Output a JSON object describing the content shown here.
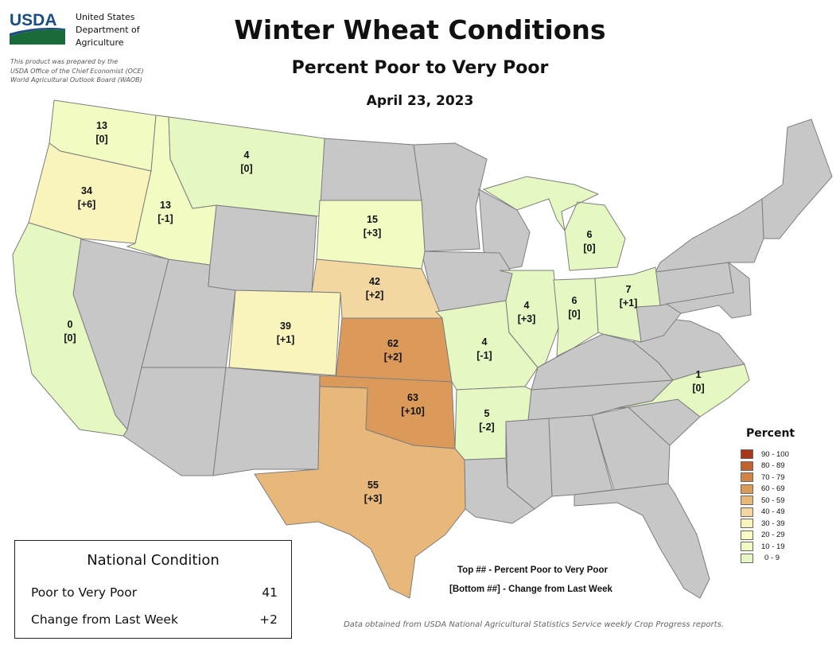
{
  "agency": {
    "name_lines": [
      "United States",
      "Department of",
      "Agriculture"
    ],
    "logo_text": "USDA"
  },
  "prepared_by": [
    "This product was prepared by the",
    "USDA Office of the Chief Economist (OCE)",
    "World Agricultural Outlook Board (WAOB)"
  ],
  "title": "Winter Wheat Conditions",
  "subtitle": "Percent Poor to Very Poor",
  "date": "April 23, 2023",
  "states": [
    {
      "id": "WA",
      "value": "13",
      "change": "[0]"
    },
    {
      "id": "OR",
      "value": "34",
      "change": "[+6]"
    },
    {
      "id": "ID",
      "value": "13",
      "change": "[-1]"
    },
    {
      "id": "MT",
      "value": "4",
      "change": "[0]"
    },
    {
      "id": "CA",
      "value": "0",
      "change": "[0]"
    },
    {
      "id": "CO",
      "value": "39",
      "change": "[+1]"
    },
    {
      "id": "SD",
      "value": "15",
      "change": "[+3]"
    },
    {
      "id": "NE",
      "value": "42",
      "change": "[+2]"
    },
    {
      "id": "KS",
      "value": "62",
      "change": "[+2]"
    },
    {
      "id": "OK",
      "value": "63",
      "change": "[+10]"
    },
    {
      "id": "TX",
      "value": "55",
      "change": "[+3]"
    },
    {
      "id": "MO",
      "value": "4",
      "change": "[-1]"
    },
    {
      "id": "AR",
      "value": "5",
      "change": "[-2]"
    },
    {
      "id": "IL",
      "value": "4",
      "change": "[+3]"
    },
    {
      "id": "IN",
      "value": "6",
      "change": "[0]"
    },
    {
      "id": "OH",
      "value": "7",
      "change": "[+1]"
    },
    {
      "id": "MI",
      "value": "6",
      "change": "[0]"
    },
    {
      "id": "NC",
      "value": "1",
      "change": "[0]"
    }
  ],
  "legend": {
    "title": "Percent",
    "items": [
      {
        "label": "90 - 100",
        "color": "#a8381c"
      },
      {
        "label": "80 - 89",
        "color": "#c0612e"
      },
      {
        "label": "70 - 79",
        "color": "#d08545"
      },
      {
        "label": "60 - 69",
        "color": "#dc9a5a"
      },
      {
        "label": "50 - 59",
        "color": "#e8b87a"
      },
      {
        "label": "40 - 49",
        "color": "#f3d7a0"
      },
      {
        "label": "30 - 39",
        "color": "#f8f4bb"
      },
      {
        "label": "20 - 29",
        "color": "#fbfbc4"
      },
      {
        "label": "10 - 19",
        "color": "#f1fbc2"
      },
      {
        "label": "0 - 9",
        "color": "#e5f8c2"
      }
    ]
  },
  "no_data_color": "#c7c7c7",
  "national": {
    "title": "National Condition",
    "rows": [
      {
        "label": "Poor to Very Poor",
        "value": "41"
      },
      {
        "label": "Change from Last Week",
        "value": "+2"
      }
    ]
  },
  "notes": {
    "top": "Top ## - Percent Poor to Very Poor",
    "bottom": "[Bottom ##] - Change from Last Week"
  },
  "source": "Data obtained from USDA National Agricultural Statistics Service weekly Crop Progress reports."
}
